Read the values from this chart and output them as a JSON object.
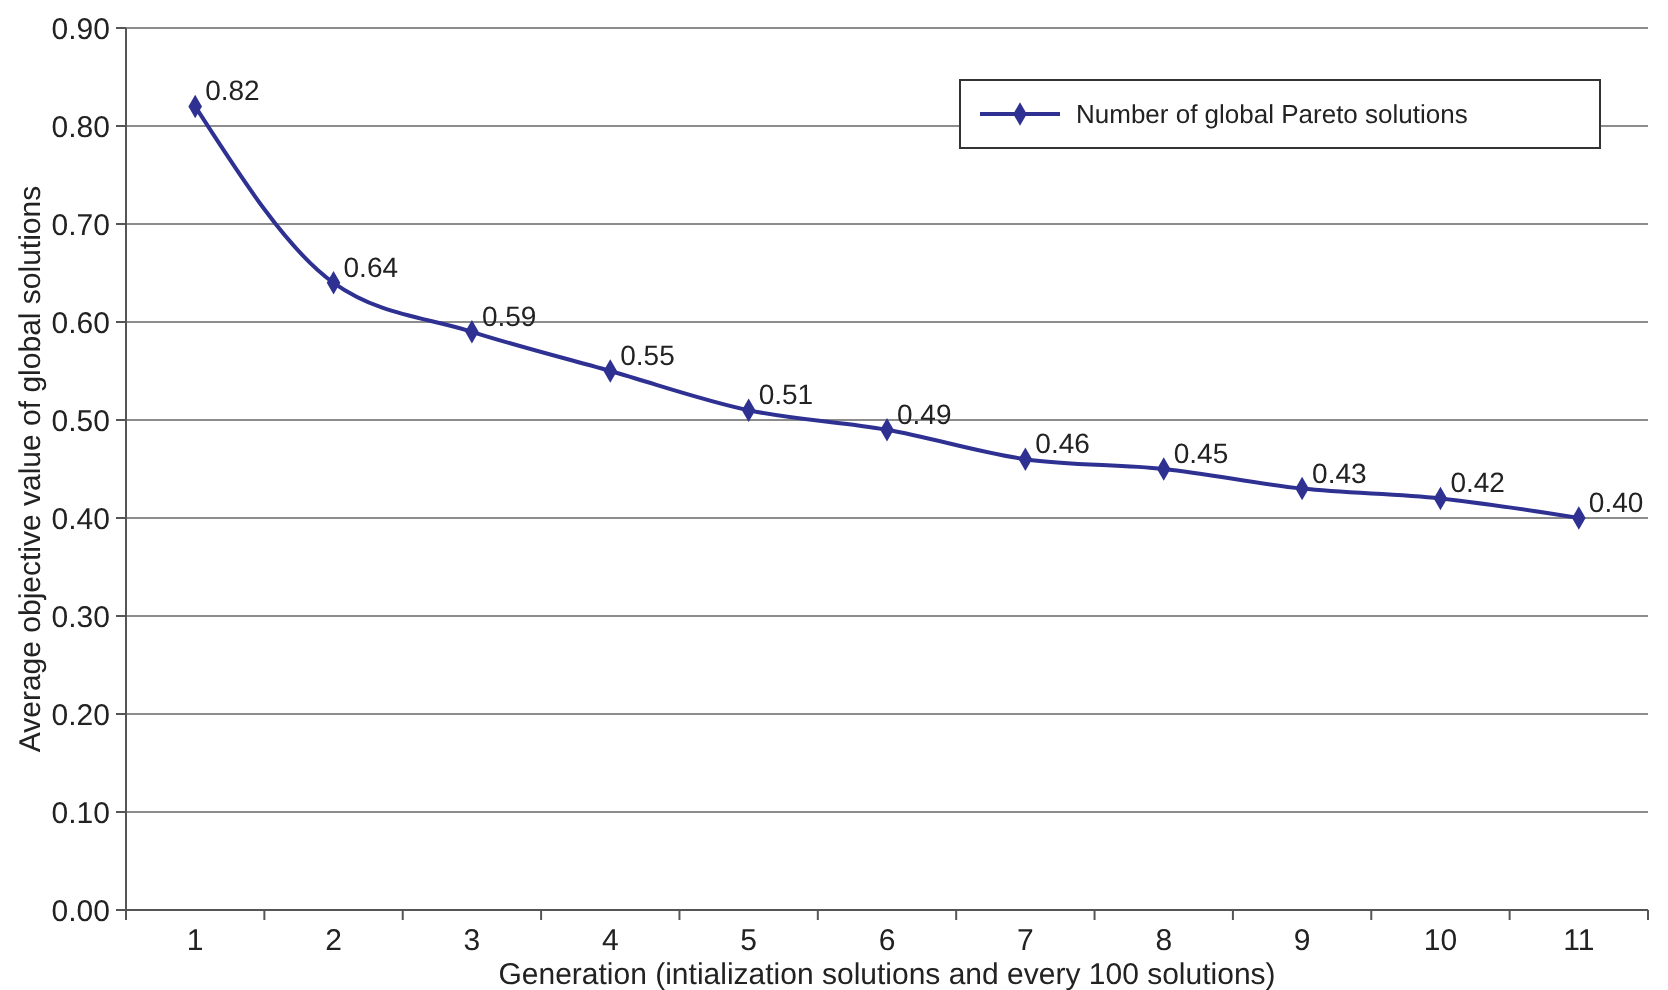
{
  "chart_data": {
    "type": "line",
    "xlabel": "Generation (intialization solutions and every 100 solutions)",
    "ylabel": "Average objective value of global solutions",
    "categories": [
      "1",
      "2",
      "3",
      "4",
      "5",
      "6",
      "7",
      "8",
      "9",
      "10",
      "11"
    ],
    "series": [
      {
        "name": "Number of global Pareto solutions",
        "color": "#2e3192",
        "values": [
          0.82,
          0.64,
          0.59,
          0.55,
          0.51,
          0.49,
          0.46,
          0.45,
          0.43,
          0.42,
          0.4
        ],
        "value_labels": [
          "0.82",
          "0.64",
          "0.59",
          "0.55",
          "0.51",
          "0.49",
          "0.46",
          "0.45",
          "0.43",
          "0.42",
          "0.40"
        ]
      }
    ],
    "ylim": [
      0,
      0.9
    ],
    "yticks": [
      {
        "value": 0,
        "label": "0.00"
      },
      {
        "value": 0.1,
        "label": "0.10"
      },
      {
        "value": 0.2,
        "label": "0.20"
      },
      {
        "value": 0.3,
        "label": "0.30"
      },
      {
        "value": 0.4,
        "label": "0.40"
      },
      {
        "value": 0.5,
        "label": "0.50"
      },
      {
        "value": 0.6,
        "label": "0.60"
      },
      {
        "value": 0.7,
        "label": "0.70"
      },
      {
        "value": 0.8,
        "label": "0.80"
      },
      {
        "value": 0.9,
        "label": "0.90"
      }
    ],
    "grid": "y",
    "legend": "top right",
    "marker": "diamond",
    "line_style": "solid"
  }
}
